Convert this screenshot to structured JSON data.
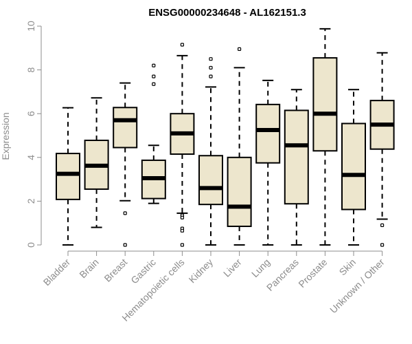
{
  "chart_data": {
    "type": "boxplot",
    "title": "ENSG00000234648 - AL162151.3",
    "ylabel": "Expression",
    "xlabel": "",
    "ylim": [
      0,
      10
    ],
    "yticks": [
      0,
      2,
      4,
      6,
      8,
      10
    ],
    "categories": [
      "Bladder",
      "Brain",
      "Breast",
      "Gastric",
      "Hematopoietic cells",
      "Kidney",
      "Liver",
      "Lung",
      "Pancreas",
      "Prostate",
      "Skin",
      "Unknown / Other"
    ],
    "boxes": [
      {
        "category": "Bladder",
        "whisker_low": 0.0,
        "q1": 2.08,
        "median": 3.25,
        "q3": 4.18,
        "whisker_high": 6.27,
        "outliers": []
      },
      {
        "category": "Brain",
        "whisker_low": 0.8,
        "q1": 2.55,
        "median": 3.62,
        "q3": 4.78,
        "whisker_high": 6.72,
        "outliers": []
      },
      {
        "category": "Breast",
        "whisker_low": 2.02,
        "q1": 4.45,
        "median": 5.7,
        "q3": 6.28,
        "whisker_high": 7.4,
        "outliers": [
          1.45,
          0.0
        ]
      },
      {
        "category": "Gastric",
        "whisker_low": 1.9,
        "q1": 2.12,
        "median": 3.05,
        "q3": 3.87,
        "whisker_high": 4.55,
        "outliers": [
          7.35,
          7.7,
          8.2
        ]
      },
      {
        "category": "Hematopoietic cells",
        "whisker_low": 1.45,
        "q1": 4.15,
        "median": 5.1,
        "q3": 6.0,
        "whisker_high": 8.65,
        "outliers": [
          9.15,
          1.35,
          1.25,
          0.75,
          0.65,
          0.0
        ]
      },
      {
        "category": "Kidney",
        "whisker_low": 0.0,
        "q1": 1.85,
        "median": 2.6,
        "q3": 4.08,
        "whisker_high": 7.22,
        "outliers": [
          8.5,
          8.1,
          7.7
        ]
      },
      {
        "category": "Liver",
        "whisker_low": 0.0,
        "q1": 0.85,
        "median": 1.75,
        "q3": 4.0,
        "whisker_high": 8.1,
        "outliers": [
          8.95
        ]
      },
      {
        "category": "Lung",
        "whisker_low": 0.0,
        "q1": 3.75,
        "median": 5.25,
        "q3": 6.42,
        "whisker_high": 7.52,
        "outliers": []
      },
      {
        "category": "Pancreas",
        "whisker_low": 0.0,
        "q1": 1.88,
        "median": 4.55,
        "q3": 6.15,
        "whisker_high": 7.1,
        "outliers": []
      },
      {
        "category": "Prostate",
        "whisker_low": 0.0,
        "q1": 4.3,
        "median": 6.0,
        "q3": 8.55,
        "whisker_high": 9.88,
        "outliers": []
      },
      {
        "category": "Skin",
        "whisker_low": 0.0,
        "q1": 1.62,
        "median": 3.2,
        "q3": 5.55,
        "whisker_high": 7.1,
        "outliers": []
      },
      {
        "category": "Unknown / Other",
        "whisker_low": 1.18,
        "q1": 4.38,
        "median": 5.5,
        "q3": 6.6,
        "whisker_high": 8.78,
        "outliers": [
          0.9,
          0.0
        ]
      }
    ],
    "colors": {
      "box_fill": "#ede6cd",
      "box_stroke": "#000000",
      "median": "#000000",
      "axis": "#8c8c8c",
      "tick_label": "#8c8c8c",
      "title": "#000000"
    },
    "grid": false,
    "legend": "none"
  }
}
